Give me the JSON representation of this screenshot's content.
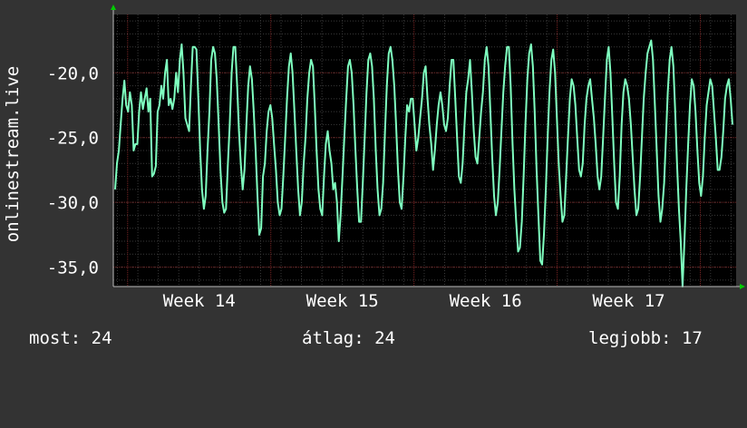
{
  "chart_data": {
    "type": "line",
    "ylabel": "onlinestream.live",
    "x_ticks": [
      "Week 14",
      "Week 15",
      "Week 16",
      "Week 17"
    ],
    "y_ticks": [
      "-20,0",
      "-25,0",
      "-30,0",
      "-35,0"
    ],
    "y_tick_values": [
      -20,
      -25,
      -30,
      -35
    ],
    "ylim": [
      -36.5,
      -15.5
    ],
    "x_range_weeks": [
      13.4,
      17.75
    ],
    "grid": true,
    "series": [
      {
        "color": "#7fffc0",
        "values": [
          -29.0,
          -27.0,
          -26.0,
          -24.0,
          -22.0,
          -20.6,
          -22.5,
          -23.0,
          -21.5,
          -22.5,
          -26.0,
          -25.5,
          -25.5,
          -23.0,
          -21.5,
          -22.8,
          -22.0,
          -21.2,
          -23.0,
          -22.0,
          -28.0,
          -27.8,
          -27.2,
          -23.0,
          -22.5,
          -21.0,
          -22.0,
          -20.0,
          -19.0,
          -22.5,
          -22.0,
          -22.8,
          -22.0,
          -20.0,
          -21.5,
          -19.0,
          -17.8,
          -20.0,
          -23.5,
          -24.0,
          -24.5,
          -21.0,
          -18.0,
          -18.0,
          -18.2,
          -22.0,
          -26.0,
          -29.0,
          -30.5,
          -29.5,
          -26.0,
          -23.0,
          -19.0,
          -18.0,
          -18.5,
          -20.5,
          -24.0,
          -27.5,
          -30.0,
          -30.8,
          -30.5,
          -27.0,
          -24.0,
          -20.0,
          -18.0,
          -18.0,
          -21.0,
          -24.5,
          -27.0,
          -29.0,
          -27.5,
          -24.0,
          -21.0,
          -19.5,
          -20.5,
          -23.0,
          -26.0,
          -29.5,
          -32.5,
          -32.0,
          -28.0,
          -27.0,
          -24.5,
          -23.0,
          -22.5,
          -23.5,
          -25.5,
          -27.5,
          -30.0,
          -31.0,
          -30.5,
          -28.0,
          -25.0,
          -22.0,
          -19.5,
          -18.5,
          -20.0,
          -23.0,
          -26.0,
          -29.0,
          -31.0,
          -30.0,
          -27.0,
          -25.0,
          -22.0,
          -20.0,
          -19.0,
          -19.5,
          -22.5,
          -26.0,
          -29.0,
          -30.5,
          -31.0,
          -28.0,
          -25.5,
          -24.5,
          -26.0,
          -27.0,
          -29.0,
          -28.5,
          -30.0,
          -33.0,
          -31.0,
          -28.0,
          -25.0,
          -22.0,
          -19.5,
          -19.0,
          -20.0,
          -22.5,
          -26.0,
          -29.0,
          -31.5,
          -31.5,
          -28.5,
          -25.0,
          -21.5,
          -19.0,
          -18.5,
          -19.5,
          -22.0,
          -26.0,
          -29.0,
          -31.0,
          -30.5,
          -28.5,
          -24.5,
          -21.0,
          -18.5,
          -18.0,
          -19.0,
          -21.0,
          -24.0,
          -27.5,
          -30.0,
          -30.5,
          -28.0,
          -25.0,
          -22.5,
          -23.0,
          -22.0,
          -22.0,
          -24.0,
          -26.0,
          -25.0,
          -23.5,
          -22.0,
          -20.0,
          -19.5,
          -22.0,
          -24.0,
          -25.5,
          -27.5,
          -26.0,
          -24.0,
          -22.5,
          -21.5,
          -22.5,
          -24.0,
          -24.5,
          -23.5,
          -21.0,
          -19.0,
          -19.0,
          -22.0,
          -25.0,
          -28.0,
          -28.5,
          -27.0,
          -24.0,
          -21.5,
          -20.5,
          -19.0,
          -21.5,
          -24.5,
          -26.5,
          -27.0,
          -25.0,
          -23.0,
          -21.5,
          -19.0,
          -18.0,
          -19.5,
          -23.0,
          -26.5,
          -29.5,
          -31.0,
          -30.0,
          -27.5,
          -24.5,
          -21.5,
          -19.5,
          -18.0,
          -18.0,
          -21.0,
          -25.5,
          -29.0,
          -31.5,
          -33.8,
          -33.5,
          -31.5,
          -28.0,
          -24.0,
          -20.5,
          -18.5,
          -17.8,
          -19.5,
          -23.0,
          -27.5,
          -31.0,
          -34.5,
          -34.8,
          -32.5,
          -29.0,
          -25.0,
          -21.5,
          -19.0,
          -18.2,
          -20.0,
          -23.5,
          -27.0,
          -29.5,
          -31.5,
          -31.0,
          -28.0,
          -25.0,
          -22.0,
          -20.5,
          -21.0,
          -22.5,
          -25.0,
          -27.5,
          -28.0,
          -27.0,
          -24.0,
          -22.0,
          -21.0,
          -20.5,
          -22.0,
          -23.5,
          -25.5,
          -28.0,
          -29.0,
          -28.0,
          -25.0,
          -22.0,
          -19.0,
          -18.0,
          -20.0,
          -23.5,
          -27.0,
          -30.0,
          -30.5,
          -28.0,
          -24.0,
          -21.5,
          -20.5,
          -21.0,
          -22.0,
          -24.0,
          -26.5,
          -29.0,
          -31.0,
          -30.5,
          -28.0,
          -25.0,
          -22.0,
          -20.0,
          -18.5,
          -18.0,
          -17.5,
          -19.0,
          -22.5,
          -26.0,
          -29.5,
          -31.5,
          -30.5,
          -28.5,
          -25.0,
          -21.5,
          -19.0,
          -18.0,
          -19.5,
          -23.0,
          -27.0,
          -30.5,
          -33.0,
          -36.5,
          -33.0,
          -29.0,
          -25.5,
          -22.5,
          -20.5,
          -21.0,
          -23.0,
          -26.0,
          -28.5,
          -29.5,
          -28.0,
          -25.0,
          -22.5,
          -21.5,
          -20.5,
          -21.0,
          -23.0,
          -25.0,
          -27.5,
          -27.5,
          -26.5,
          -24.5,
          -22.0,
          -21.0,
          -20.5,
          -22.0,
          -24.0
        ]
      }
    ]
  },
  "stats": {
    "now": "most: 24",
    "avg": "átlag: 24",
    "best": "legjobb: 17"
  },
  "colors": {
    "background": "#333333",
    "plot_background": "#000000",
    "grid_minor": "#3a3a3a",
    "grid_major": "#7a2424",
    "line": "#7fffc0",
    "axis_arrow": "#00cc00",
    "text": "#ffffff"
  }
}
